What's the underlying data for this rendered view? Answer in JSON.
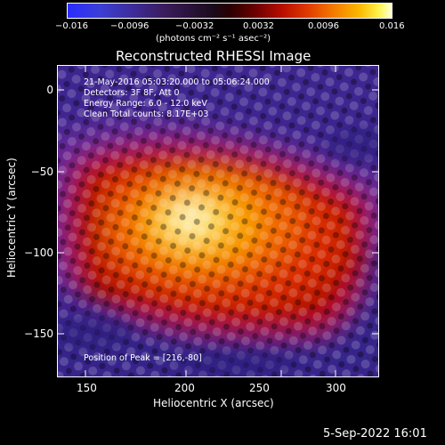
{
  "colorbar": {
    "ticks": [
      "−0.016",
      "−0.0096",
      "−0.0032",
      "0.0032",
      "0.0096",
      "0.016"
    ],
    "unit_label": "(photons cm⁻² s⁻¹ asec⁻²)",
    "colors": [
      "#2a2cff",
      "#3e2c9a",
      "#1b0a1c",
      "#6d0000",
      "#e03a00",
      "#fbb800",
      "#ffffd8"
    ]
  },
  "plot": {
    "title": "Reconstructed RHESSI Image",
    "annotations": {
      "time_range": "21-May-2016 05:03:20.000 to 05:06:24.000",
      "detectors": "Detectors: 3F 8F, Att 0",
      "energy_range": "Energy Range: 6.0 - 12.0 keV",
      "method": "Clean     Total counts: 8.17E+03",
      "peak": "Position of Peak = [216,-80]"
    },
    "x_axis": {
      "label": "Heliocentric X (arcsec)",
      "ticks": [
        "150",
        "200",
        "250",
        "300"
      ],
      "range": [
        133,
        327
      ]
    },
    "y_axis": {
      "label": "Heliocentric Y (arcsec)",
      "ticks": [
        "0",
        "−50",
        "−100",
        "−150"
      ],
      "range": [
        -178,
        12
      ]
    },
    "peak_position": [
      216,
      -80
    ]
  },
  "footer": {
    "date": "5-Sep-2022 16:01"
  }
}
